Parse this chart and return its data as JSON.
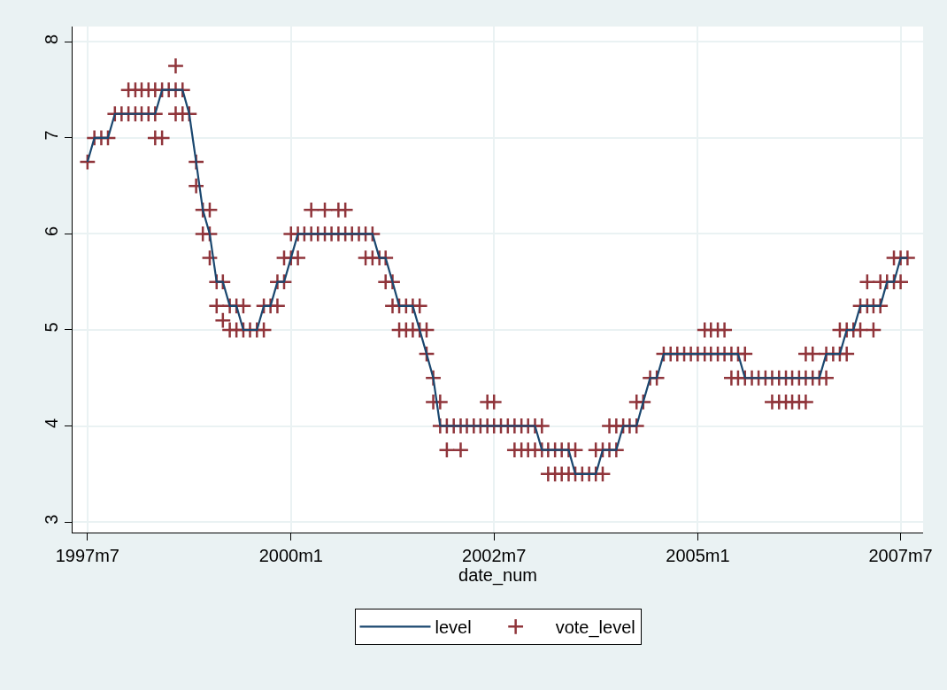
{
  "chart_data": {
    "type": "line",
    "xlabel": "date_num",
    "xlim": [
      "1997-04-25",
      "2007-10-10"
    ],
    "xticks": [
      {
        "value": "1997-07",
        "label": "1997m7"
      },
      {
        "value": "2000-01",
        "label": "2000m1"
      },
      {
        "value": "2002-07",
        "label": "2002m7"
      },
      {
        "value": "2005-01",
        "label": "2005m1"
      },
      {
        "value": "2007-07",
        "label": "2007m7"
      }
    ],
    "ylim": [
      2.89,
      8.16
    ],
    "yticks": [
      3,
      4,
      5,
      6,
      7,
      8
    ],
    "grid": true,
    "legend": "bottom",
    "series": [
      {
        "name": "level",
        "color": "#1a476f",
        "marker": "none",
        "line_style": "solid",
        "x": [
          "1997-07",
          "1997-08",
          "1997-09",
          "1997-10",
          "1997-11",
          "1997-12",
          "1998-01",
          "1998-02",
          "1998-03",
          "1998-04",
          "1998-05",
          "1998-06",
          "1998-07",
          "1998-08",
          "1998-09",
          "1998-10",
          "1998-11",
          "1998-12",
          "1999-01",
          "1999-02",
          "1999-03",
          "1999-04",
          "1999-05",
          "1999-06",
          "1999-07",
          "1999-08",
          "1999-09",
          "1999-10",
          "1999-11",
          "1999-12",
          "2000-01",
          "2000-02",
          "2000-03",
          "2000-04",
          "2000-05",
          "2000-06",
          "2000-07",
          "2000-08",
          "2000-09",
          "2000-10",
          "2000-11",
          "2000-12",
          "2001-01",
          "2001-02",
          "2001-03",
          "2001-04",
          "2001-05",
          "2001-06",
          "2001-07",
          "2001-08",
          "2001-09",
          "2001-10",
          "2001-11",
          "2001-12",
          "2002-01",
          "2002-02",
          "2002-03",
          "2002-04",
          "2002-05",
          "2002-06",
          "2002-07",
          "2002-08",
          "2002-09",
          "2002-10",
          "2002-11",
          "2002-12",
          "2003-01",
          "2003-02",
          "2003-03",
          "2003-04",
          "2003-05",
          "2003-06",
          "2003-07",
          "2003-08",
          "2003-09",
          "2003-10",
          "2003-11",
          "2003-12",
          "2004-01",
          "2004-02",
          "2004-03",
          "2004-04",
          "2004-05",
          "2004-06",
          "2004-07",
          "2004-08",
          "2004-09",
          "2004-10",
          "2004-11",
          "2004-12",
          "2005-01",
          "2005-02",
          "2005-03",
          "2005-04",
          "2005-05",
          "2005-06",
          "2005-07",
          "2005-08",
          "2005-09",
          "2005-10",
          "2005-11",
          "2005-12",
          "2006-01",
          "2006-02",
          "2006-03",
          "2006-04",
          "2006-05",
          "2006-06",
          "2006-07",
          "2006-08",
          "2006-09",
          "2006-10",
          "2006-11",
          "2006-12",
          "2007-01",
          "2007-02",
          "2007-03",
          "2007-04",
          "2007-05",
          "2007-06",
          "2007-07",
          "2007-08"
        ],
        "values": [
          6.75,
          7,
          7,
          7,
          7.25,
          7.25,
          7.25,
          7.25,
          7.25,
          7.25,
          7.25,
          7.5,
          7.5,
          7.5,
          7.5,
          7.25,
          6.75,
          6.25,
          6,
          5.5,
          5.5,
          5.25,
          5.25,
          5,
          5,
          5,
          5.25,
          5.25,
          5.5,
          5.5,
          5.75,
          6,
          6,
          6,
          6,
          6,
          6,
          6,
          6,
          6,
          6,
          6,
          6,
          5.75,
          5.75,
          5.5,
          5.25,
          5.25,
          5.25,
          5,
          4.75,
          4.5,
          4,
          4,
          4,
          4,
          4,
          4,
          4,
          4,
          4,
          4,
          4,
          4,
          4,
          4,
          4,
          3.75,
          3.75,
          3.75,
          3.75,
          3.75,
          3.5,
          3.5,
          3.5,
          3.5,
          3.75,
          3.75,
          3.75,
          4,
          4,
          4,
          4.25,
          4.5,
          4.5,
          4.75,
          4.75,
          4.75,
          4.75,
          4.75,
          4.75,
          4.75,
          4.75,
          4.75,
          4.75,
          4.75,
          4.75,
          4.5,
          4.5,
          4.5,
          4.5,
          4.5,
          4.5,
          4.5,
          4.5,
          4.5,
          4.5,
          4.5,
          4.5,
          4.75,
          4.75,
          4.75,
          5,
          5,
          5.25,
          5.25,
          5.25,
          5.25,
          5.5,
          5.5,
          5.75,
          5.75
        ]
      },
      {
        "name": "vote_level",
        "type": "scatter",
        "color": "#90353b",
        "marker": "cross",
        "x": [
          "1997-07",
          "1997-08",
          "1997-09",
          "1997-10",
          "1998-05",
          "1998-06",
          "1997-11",
          "1997-12",
          "1998-01",
          "1998-02",
          "1998-03",
          "1998-04",
          "1998-05",
          "1998-08",
          "1998-09",
          "1998-10",
          "1998-01",
          "1998-02",
          "1998-03",
          "1998-04",
          "1998-05",
          "1998-06",
          "1998-07",
          "1998-08",
          "1998-09",
          "1998-08",
          "1998-11",
          "1998-11",
          "1998-12",
          "1999-01",
          "1998-12",
          "1999-01",
          "1999-01",
          "1999-02",
          "1999-03",
          "1999-02",
          "1999-04",
          "1999-05",
          "1999-06",
          "1999-03",
          "1999-04",
          "1999-05",
          "1999-06",
          "1999-07",
          "1999-08",
          "1999-09",
          "1999-09",
          "1999-10",
          "1999-11",
          "1999-11",
          "1999-12",
          "1999-12",
          "2000-01",
          "2000-02",
          "2000-01",
          "2000-02",
          "2000-03",
          "2000-04",
          "2000-05",
          "2000-06",
          "2000-07",
          "2000-08",
          "2000-09",
          "2000-10",
          "2000-11",
          "2000-12",
          "2001-01",
          "2000-04",
          "2000-06",
          "2000-08",
          "2000-09",
          "2000-12",
          "2001-01",
          "2001-02",
          "2001-03",
          "2001-03",
          "2001-04",
          "2001-04",
          "2001-05",
          "2001-06",
          "2001-07",
          "2001-08",
          "2001-05",
          "2001-06",
          "2001-07",
          "2001-08",
          "2001-09",
          "2001-09",
          "2001-10",
          "2001-10",
          "2001-11",
          "2001-11",
          "2001-12",
          "2002-01",
          "2002-02",
          "2002-03",
          "2002-04",
          "2002-05",
          "2002-06",
          "2002-07",
          "2002-08",
          "2002-09",
          "2002-10",
          "2002-11",
          "2002-12",
          "2003-01",
          "2003-02",
          "2002-06",
          "2002-07",
          "2001-12",
          "2002-02",
          "2002-10",
          "2002-11",
          "2002-12",
          "2003-01",
          "2003-02",
          "2003-03",
          "2003-04",
          "2003-05",
          "2003-06",
          "2003-07",
          "2003-03",
          "2003-04",
          "2003-05",
          "2003-06",
          "2003-07",
          "2003-08",
          "2003-09",
          "2003-10",
          "2003-11",
          "2003-10",
          "2003-11",
          "2003-12",
          "2004-01",
          "2003-12",
          "2004-01",
          "2004-02",
          "2004-03",
          "2004-04",
          "2004-04",
          "2004-05",
          "2004-06",
          "2004-07",
          "2004-08",
          "2004-09",
          "2004-10",
          "2004-11",
          "2004-12",
          "2005-01",
          "2005-02",
          "2005-03",
          "2005-04",
          "2005-05",
          "2005-06",
          "2005-07",
          "2005-08",
          "2005-02",
          "2005-03",
          "2005-04",
          "2005-05",
          "2005-06",
          "2005-07",
          "2005-08",
          "2005-09",
          "2005-10",
          "2005-11",
          "2005-12",
          "2006-01",
          "2006-02",
          "2006-03",
          "2006-04",
          "2006-05",
          "2006-06",
          "2006-07",
          "2006-08",
          "2005-12",
          "2006-01",
          "2006-02",
          "2006-03",
          "2006-04",
          "2006-05",
          "2006-05",
          "2006-06",
          "2006-08",
          "2006-09",
          "2006-10",
          "2006-11",
          "2006-10",
          "2006-11",
          "2006-12",
          "2007-01",
          "2007-03",
          "2007-01",
          "2007-02",
          "2007-03",
          "2007-04",
          "2007-02",
          "2007-04",
          "2007-05",
          "2007-06",
          "2007-07",
          "2007-06",
          "2007-07",
          "2007-08"
        ],
        "values": [
          6.75,
          7,
          7,
          7,
          7,
          7,
          7.25,
          7.25,
          7.25,
          7.25,
          7.25,
          7.25,
          7.25,
          7.25,
          7.25,
          7.25,
          7.5,
          7.5,
          7.5,
          7.5,
          7.5,
          7.5,
          7.5,
          7.5,
          7.5,
          7.75,
          6.75,
          6.5,
          6.25,
          6.25,
          6,
          6,
          5.75,
          5.5,
          5.5,
          5.25,
          5.25,
          5.25,
          5.25,
          5.1,
          5,
          5,
          5,
          5,
          5,
          5,
          5.25,
          5.25,
          5.25,
          5.5,
          5.5,
          5.75,
          5.75,
          5.75,
          6,
          6,
          6,
          6,
          6,
          6,
          6,
          6,
          6,
          6,
          6,
          6,
          6,
          6.25,
          6.25,
          6.25,
          6.25,
          5.75,
          5.75,
          5.75,
          5.75,
          5.5,
          5.5,
          5.25,
          5.25,
          5.25,
          5.25,
          5.25,
          5,
          5,
          5,
          5,
          5,
          4.75,
          4.5,
          4.25,
          4.25,
          4,
          4,
          4,
          4,
          4,
          4,
          4,
          4,
          4,
          4,
          4,
          4,
          4,
          4,
          4,
          4,
          4.25,
          4.25,
          3.75,
          3.75,
          3.75,
          3.75,
          3.75,
          3.75,
          3.75,
          3.75,
          3.75,
          3.75,
          3.75,
          3.75,
          3.5,
          3.5,
          3.5,
          3.5,
          3.5,
          3.5,
          3.5,
          3.5,
          3.5,
          3.75,
          3.75,
          3.75,
          3.75,
          4,
          4,
          4,
          4,
          4,
          4.25,
          4.25,
          4.5,
          4.5,
          4.75,
          4.75,
          4.75,
          4.75,
          4.75,
          4.75,
          4.75,
          4.75,
          4.75,
          4.75,
          4.75,
          4.75,
          4.75,
          5,
          5,
          5,
          5,
          4.5,
          4.5,
          4.5,
          4.5,
          4.5,
          4.5,
          4.5,
          4.5,
          4.5,
          4.5,
          4.5,
          4.5,
          4.5,
          4.5,
          4.5,
          4.25,
          4.25,
          4.25,
          4.25,
          4.25,
          4.25,
          4.75,
          4.75,
          4.75,
          4.75,
          4.75,
          4.75,
          5,
          5,
          5,
          5,
          5,
          5.25,
          5.25,
          5.25,
          5.25,
          5.5,
          5.5,
          5.5,
          5.5,
          5.5,
          5.75,
          5.75,
          5.75
        ]
      }
    ]
  }
}
